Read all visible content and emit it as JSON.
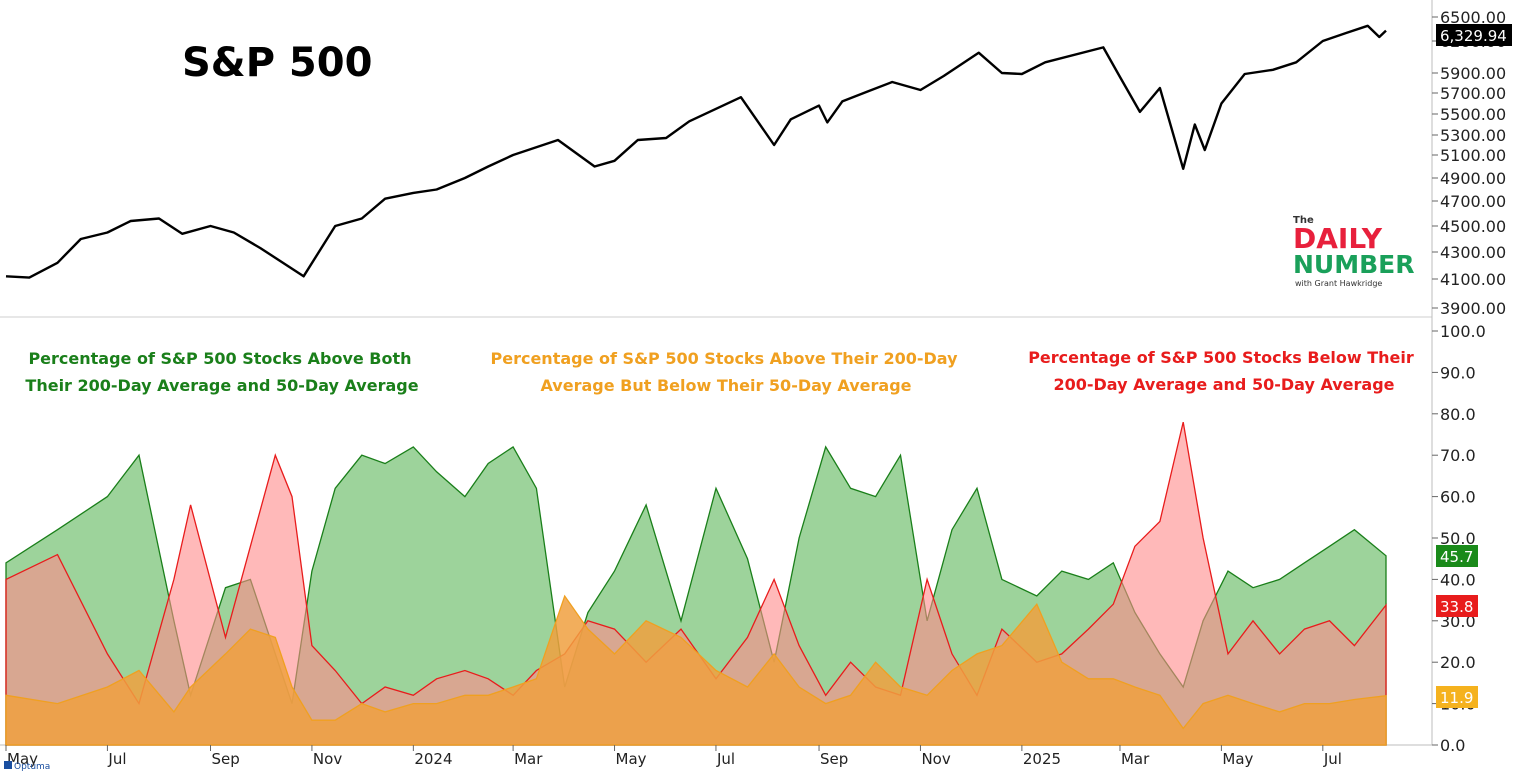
{
  "branding": {
    "logo_small": "The",
    "logo_line1": "DAILY",
    "logo_line2": "NUMBER",
    "logo_tagline": "with Grant Hawkridge",
    "footer": "Optuma"
  },
  "colors": {
    "sp_line": "#000000",
    "green": "#1a7f1a",
    "green_fill": "#7cc47a",
    "orange": "#f0a020",
    "orange_fill": "#f0a040",
    "red": "#e81c1c",
    "red_fill": "#ff8a8a",
    "brown": "#b5674a",
    "logo_red": "#e8203c",
    "logo_green": "#1aa05a"
  },
  "chart_data": [
    {
      "type": "line",
      "title": "S&P 500",
      "y_ticks": [
        "6500.00",
        "6200.00",
        "5900.00",
        "5700.00",
        "5500.00",
        "5300.00",
        "5100.00",
        "4900.00",
        "4700.00",
        "4500.00",
        "4300.00",
        "4100.00",
        "3900.00"
      ],
      "last_value_label": "6,329.94",
      "x": [
        "2023-05-01",
        "2023-05-15",
        "2023-06-01",
        "2023-06-15",
        "2023-07-01",
        "2023-07-15",
        "2023-08-01",
        "2023-08-15",
        "2023-09-01",
        "2023-09-15",
        "2023-10-01",
        "2023-10-27",
        "2023-11-15",
        "2023-12-01",
        "2023-12-15",
        "2024-01-01",
        "2024-01-15",
        "2024-02-01",
        "2024-02-15",
        "2024-03-01",
        "2024-03-28",
        "2024-04-19",
        "2024-05-01",
        "2024-05-15",
        "2024-06-01",
        "2024-06-15",
        "2024-07-16",
        "2024-08-05",
        "2024-08-15",
        "2024-09-01",
        "2024-09-06",
        "2024-09-15",
        "2024-10-01",
        "2024-10-15",
        "2024-11-01",
        "2024-11-15",
        "2024-12-06",
        "2024-12-20",
        "2025-01-01",
        "2025-01-15",
        "2025-02-19",
        "2025-03-01",
        "2025-03-13",
        "2025-03-25",
        "2025-04-08",
        "2025-04-15",
        "2025-04-21",
        "2025-05-01",
        "2025-05-15",
        "2025-06-01",
        "2025-06-15",
        "2025-07-01",
        "2025-07-15",
        "2025-07-28",
        "2025-08-04",
        "2025-08-08"
      ],
      "y": [
        4120,
        4110,
        4220,
        4400,
        4450,
        4540,
        4560,
        4440,
        4500,
        4450,
        4330,
        4120,
        4500,
        4560,
        4720,
        4770,
        4800,
        4900,
        5000,
        5100,
        5250,
        5000,
        5050,
        5250,
        5270,
        5430,
        5660,
        5200,
        5450,
        5580,
        5420,
        5620,
        5720,
        5810,
        5730,
        5870,
        6090,
        5900,
        5890,
        6000,
        6140,
        5860,
        5520,
        5750,
        4980,
        5400,
        5150,
        5600,
        5890,
        5930,
        6000,
        6200,
        6300,
        6390,
        6250,
        6330
      ],
      "ylim": [
        3900,
        6500
      ]
    },
    {
      "type": "area",
      "y_ticks": [
        "100.0",
        "90.0",
        "80.0",
        "70.0",
        "60.0",
        "50.0",
        "40.0",
        "30.0",
        "20.0",
        "10.0",
        "0.0"
      ],
      "ylim": [
        0,
        100
      ],
      "x_ticks": [
        "May",
        "Jul",
        "Sep",
        "Nov",
        "2024",
        "Mar",
        "May",
        "Jul",
        "Sep",
        "Nov",
        "2025",
        "Mar",
        "May",
        "Jul"
      ],
      "x": [
        "2023-05-01",
        "2023-06-01",
        "2023-07-01",
        "2023-07-20",
        "2023-08-10",
        "2023-08-20",
        "2023-09-10",
        "2023-09-25",
        "2023-10-10",
        "2023-10-20",
        "2023-11-01",
        "2023-11-15",
        "2023-12-01",
        "2023-12-15",
        "2024-01-01",
        "2024-01-15",
        "2024-02-01",
        "2024-02-15",
        "2024-03-01",
        "2024-03-15",
        "2024-04-01",
        "2024-04-15",
        "2024-05-01",
        "2024-05-20",
        "2024-06-10",
        "2024-07-01",
        "2024-07-20",
        "2024-08-05",
        "2024-08-20",
        "2024-09-05",
        "2024-09-20",
        "2024-10-05",
        "2024-10-20",
        "2024-11-05",
        "2024-11-20",
        "2024-12-05",
        "2024-12-20",
        "2025-01-10",
        "2025-01-25",
        "2025-02-10",
        "2025-02-25",
        "2025-03-10",
        "2025-03-25",
        "2025-04-08",
        "2025-04-20",
        "2025-05-05",
        "2025-05-20",
        "2025-06-05",
        "2025-06-20",
        "2025-07-05",
        "2025-07-20",
        "2025-08-08"
      ],
      "series": [
        {
          "name": "Percentage of S&P 500 Stocks Above Both Their 200-Day Average and 50-Day Average",
          "last_label": "45.7",
          "values": [
            44,
            52,
            60,
            70,
            30,
            12,
            38,
            40,
            22,
            10,
            42,
            62,
            70,
            68,
            72,
            66,
            60,
            68,
            72,
            62,
            14,
            32,
            42,
            58,
            30,
            62,
            45,
            20,
            50,
            72,
            62,
            60,
            70,
            30,
            52,
            62,
            40,
            36,
            42,
            40,
            44,
            32,
            22,
            14,
            30,
            42,
            38,
            40,
            44,
            48,
            52,
            45.7
          ]
        },
        {
          "name": "Percentage of S&P 500 Stocks Above Their 200-Day Average But Below Their 50-Day Average",
          "last_label": "11.9",
          "values": [
            12,
            10,
            14,
            18,
            8,
            14,
            22,
            28,
            26,
            14,
            6,
            6,
            10,
            8,
            10,
            10,
            12,
            12,
            14,
            16,
            36,
            28,
            22,
            30,
            26,
            18,
            14,
            22,
            14,
            10,
            12,
            20,
            14,
            12,
            18,
            22,
            24,
            34,
            20,
            16,
            16,
            14,
            12,
            4,
            10,
            12,
            10,
            8,
            10,
            10,
            11,
            11.9
          ]
        },
        {
          "name": "Percentage of S&P 500 Stocks Below Their 200-Day Average and 50-Day Average",
          "last_label": "33.8",
          "values": [
            40,
            46,
            22,
            10,
            40,
            58,
            26,
            48,
            70,
            60,
            24,
            18,
            10,
            14,
            12,
            16,
            18,
            16,
            12,
            18,
            22,
            30,
            28,
            20,
            28,
            16,
            26,
            40,
            24,
            12,
            20,
            14,
            12,
            40,
            22,
            12,
            28,
            20,
            22,
            28,
            34,
            48,
            54,
            78,
            50,
            22,
            30,
            22,
            28,
            30,
            24,
            33.8
          ]
        }
      ]
    }
  ]
}
